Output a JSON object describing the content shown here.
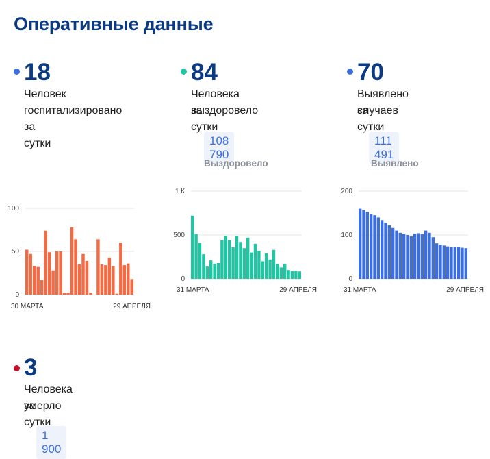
{
  "header": {
    "title": "Оперативные данные"
  },
  "cards": {
    "hosp": {
      "value": "18",
      "desc_l1": "Человек",
      "desc_l2": "госпитализировано",
      "desc_l3": "за сутки",
      "dot": "#3d6ee0"
    },
    "recovered": {
      "value": "84",
      "desc_l1": "Человека выздоровело",
      "desc_l2": "за сутки",
      "total": "108 790",
      "total_label": "Выздоровело",
      "dot": "#1dc7a3"
    },
    "cases": {
      "value": "70",
      "desc_l1": "Выявлено случаев",
      "desc_l2": "за сутки",
      "total": "111 491",
      "total_label": "Выявлено",
      "dot": "#3d6ee0"
    },
    "deaths": {
      "value": "3",
      "desc_l1": "Человека умерло",
      "desc_l2": "за сутки",
      "total": "1 900",
      "dot": "#c8102e"
    }
  },
  "chart_data": [
    {
      "type": "bar",
      "color": "#f26b44",
      "x_start_label": "30 МАРТА",
      "x_end_label": "29 АПРЕЛЯ",
      "y_ticks": [
        "100",
        "50",
        "0"
      ],
      "ylim": [
        0,
        100
      ],
      "values": [
        52,
        47,
        33,
        32,
        17,
        74,
        49,
        28,
        50,
        50,
        2,
        2,
        78,
        64,
        35,
        47,
        39,
        2,
        0,
        64,
        35,
        34,
        43,
        33,
        1,
        60,
        34,
        36,
        18
      ]
    },
    {
      "type": "bar",
      "color": "#1dc7a3",
      "x_start_label": "31 МАРТА",
      "x_end_label": "29 АПРЕЛЯ",
      "y_ticks": [
        "1 К",
        "500",
        "0"
      ],
      "ylim": [
        0,
        1000
      ],
      "values": [
        720,
        510,
        410,
        280,
        140,
        210,
        170,
        180,
        440,
        490,
        440,
        360,
        490,
        420,
        350,
        470,
        300,
        400,
        320,
        200,
        290,
        220,
        330,
        170,
        130,
        170,
        100,
        90,
        90,
        84
      ]
    },
    {
      "type": "bar",
      "color": "#3d6ee0",
      "x_start_label": "31 МАРТА",
      "x_end_label": "29 АПРЕЛЯ",
      "y_ticks": [
        "200",
        "100",
        "0"
      ],
      "ylim": [
        0,
        200
      ],
      "values": [
        160,
        157,
        153,
        148,
        145,
        140,
        134,
        128,
        122,
        116,
        110,
        105,
        103,
        100,
        97,
        103,
        104,
        102,
        110,
        105,
        95,
        81,
        78,
        76,
        74,
        72,
        73,
        73,
        71,
        70
      ]
    }
  ]
}
